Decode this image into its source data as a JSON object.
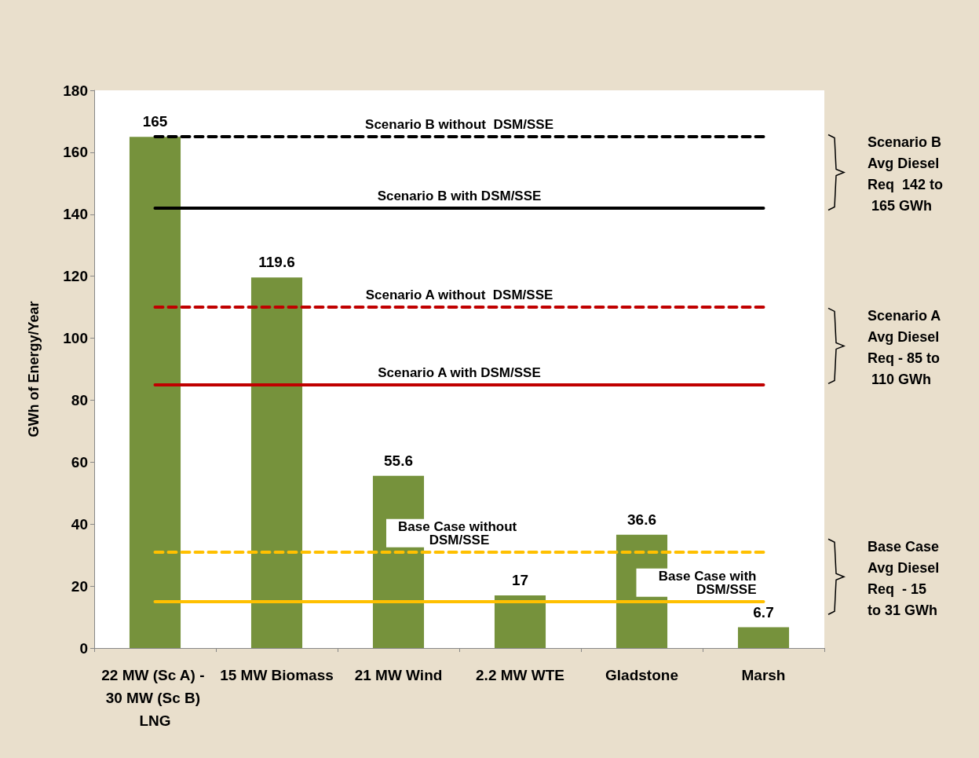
{
  "chart_data": {
    "type": "bar",
    "ylabel": "GWh of Energy/Year",
    "categories": [
      "22 MW (Sc A) - 30 MW (Sc B) LNG",
      "15 MW Biomass",
      "21 MW Wind",
      "2.2 MW WTE",
      "Gladstone",
      "Marsh"
    ],
    "values": [
      165,
      119.6,
      55.6,
      17,
      36.6,
      6.7
    ],
    "color": "#76923c",
    "data_labels": true,
    "ylim": [
      0,
      180
    ],
    "yticks": [
      0,
      20,
      40,
      60,
      80,
      100,
      120,
      140,
      160,
      180
    ],
    "grid": false,
    "ref_lines": [
      {
        "axis": "y",
        "value": 165,
        "label": "Scenario B without  DSM/SSE",
        "color": "#000000",
        "line_style": "dashed"
      },
      {
        "axis": "y",
        "value": 142,
        "label": "Scenario B with DSM/SSE",
        "color": "#000000",
        "line_style": "solid"
      },
      {
        "axis": "y",
        "value": 110,
        "label": "Scenario A without  DSM/SSE",
        "color": "#c00000",
        "line_style": "dashed"
      },
      {
        "axis": "y",
        "value": 85,
        "label": "Scenario A with DSM/SSE",
        "color": "#c00000",
        "line_style": "solid"
      },
      {
        "axis": "y",
        "value": 31,
        "label": "Base Case without DSM/SSE",
        "color": "#ffc000",
        "line_style": "dashed"
      },
      {
        "axis": "y",
        "value": 15,
        "label": "Base Case with DSM/SSE",
        "color": "#ffc000",
        "line_style": "solid"
      }
    ],
    "annotations": [
      "Scenario B Avg Diesel Req  142 to 165 GWh",
      "Scenario A Avg Diesel Req - 85 to 110 GWh",
      "Base Case Avg Diesel Req  - 15 to 31 GWh"
    ]
  }
}
